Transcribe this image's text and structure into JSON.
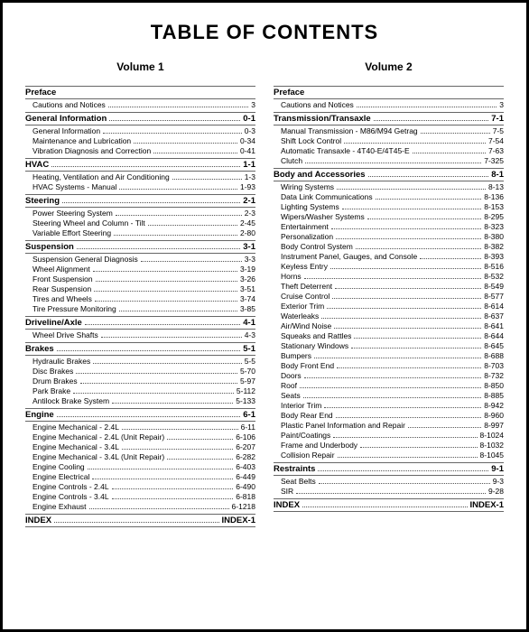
{
  "title": "TABLE OF CONTENTS",
  "volumes": [
    {
      "header": "Volume 1",
      "sections": [
        {
          "name": "Preface",
          "page": "",
          "items": [
            {
              "label": "Cautions and Notices",
              "page": "3"
            }
          ]
        },
        {
          "name": "General Information",
          "page": "0-1",
          "items": [
            {
              "label": "General Information",
              "page": "0-3"
            },
            {
              "label": "Maintenance and Lubrication",
              "page": "0-34"
            },
            {
              "label": "Vibration Diagnosis and Correction",
              "page": "0-41"
            }
          ]
        },
        {
          "name": "HVAC",
          "page": "1-1",
          "items": [
            {
              "label": "Heating, Ventilation and Air Conditioning",
              "page": "1-3"
            },
            {
              "label": "HVAC Systems - Manual",
              "page": "1-93"
            }
          ]
        },
        {
          "name": "Steering",
          "page": "2-1",
          "items": [
            {
              "label": "Power Steering System",
              "page": "2-3"
            },
            {
              "label": "Steering Wheel and Column - Tilt",
              "page": "2-45"
            },
            {
              "label": "Variable Effort Steering",
              "page": "2-80"
            }
          ]
        },
        {
          "name": "Suspension",
          "page": "3-1",
          "items": [
            {
              "label": "Suspension General Diagnosis",
              "page": "3-3"
            },
            {
              "label": "Wheel Alignment",
              "page": "3-19"
            },
            {
              "label": "Front Suspension",
              "page": "3-26"
            },
            {
              "label": "Rear Suspension",
              "page": "3-51"
            },
            {
              "label": "Tires and Wheels",
              "page": "3-74"
            },
            {
              "label": "Tire Pressure Monitoring",
              "page": "3-85"
            }
          ]
        },
        {
          "name": "Driveline/Axle",
          "page": "4-1",
          "items": [
            {
              "label": "Wheel Drive Shafts",
              "page": "4-3"
            }
          ]
        },
        {
          "name": "Brakes",
          "page": "5-1",
          "items": [
            {
              "label": "Hydraulic Brakes",
              "page": "5-5"
            },
            {
              "label": "Disc Brakes",
              "page": "5-70"
            },
            {
              "label": "Drum Brakes",
              "page": "5-97"
            },
            {
              "label": "Park Brake",
              "page": "5-112"
            },
            {
              "label": "Antilock Brake System",
              "page": "5-133"
            }
          ]
        },
        {
          "name": "Engine",
          "page": "6-1",
          "items": [
            {
              "label": "Engine Mechanical - 2.4L",
              "page": "6-11"
            },
            {
              "label": "Engine Mechanical - 2.4L (Unit Repair)",
              "page": "6-106"
            },
            {
              "label": "Engine Mechanical - 3.4L",
              "page": "6-207"
            },
            {
              "label": "Engine Mechanical - 3.4L (Unit Repair)",
              "page": "6-282"
            },
            {
              "label": "Engine Cooling",
              "page": "6-403"
            },
            {
              "label": "Engine Electrical",
              "page": "6-449"
            },
            {
              "label": "Engine Controls - 2.4L",
              "page": "6-490"
            },
            {
              "label": "Engine Controls - 3.4L",
              "page": "6-818"
            },
            {
              "label": "Engine Exhaust",
              "page": "6-1218"
            }
          ]
        }
      ],
      "index": {
        "label": "INDEX",
        "page": "INDEX-1"
      }
    },
    {
      "header": "Volume 2",
      "sections": [
        {
          "name": "Preface",
          "page": "",
          "items": [
            {
              "label": "Cautions and Notices",
              "page": "3"
            }
          ]
        },
        {
          "name": "Transmission/Transaxle",
          "page": "7-1",
          "items": [
            {
              "label": "Manual Transmission - M86/M94 Getrag",
              "page": "7-5"
            },
            {
              "label": "Shift Lock Control",
              "page": "7-54"
            },
            {
              "label": "Automatic Transaxle - 4T40-E/4T45-E",
              "page": "7-63"
            },
            {
              "label": "Clutch",
              "page": "7-325"
            }
          ]
        },
        {
          "name": "Body and Accessories",
          "page": "8-1",
          "items": [
            {
              "label": "Wiring Systems",
              "page": "8-13"
            },
            {
              "label": "Data Link Communications",
              "page": "8-136"
            },
            {
              "label": "Lighting Systems",
              "page": "8-153"
            },
            {
              "label": "Wipers/Washer Systems",
              "page": "8-295"
            },
            {
              "label": "Entertainment",
              "page": "8-323"
            },
            {
              "label": "Personalization",
              "page": "8-380"
            },
            {
              "label": "Body Control System",
              "page": "8-382"
            },
            {
              "label": "Instrument Panel, Gauges, and Console",
              "page": "8-393"
            },
            {
              "label": "Keyless Entry",
              "page": "8-516"
            },
            {
              "label": "Horns",
              "page": "8-532"
            },
            {
              "label": "Theft Deterrent",
              "page": "8-549"
            },
            {
              "label": "Cruise Control",
              "page": "8-577"
            },
            {
              "label": "Exterior Trim",
              "page": "8-614"
            },
            {
              "label": "Waterleaks",
              "page": "8-637"
            },
            {
              "label": "Air/Wind Noise",
              "page": "8-641"
            },
            {
              "label": "Squeaks and Rattles",
              "page": "8-644"
            },
            {
              "label": "Stationary Windows",
              "page": "8-645"
            },
            {
              "label": "Bumpers",
              "page": "8-688"
            },
            {
              "label": "Body Front End",
              "page": "8-703"
            },
            {
              "label": "Doors",
              "page": "8-732"
            },
            {
              "label": "Roof",
              "page": "8-850"
            },
            {
              "label": "Seats",
              "page": "8-885"
            },
            {
              "label": "Interior Trim",
              "page": "8-942"
            },
            {
              "label": "Body Rear End",
              "page": "8-960"
            },
            {
              "label": "Plastic Panel Information and Repair",
              "page": "8-997"
            },
            {
              "label": "Paint/Coatings",
              "page": "8-1024"
            },
            {
              "label": "Frame and Underbody",
              "page": "8-1032"
            },
            {
              "label": "Collision Repair",
              "page": "8-1045"
            }
          ]
        },
        {
          "name": "Restraints",
          "page": "9-1",
          "items": [
            {
              "label": "Seat Belts",
              "page": "9-3"
            },
            {
              "label": "SIR",
              "page": "9-28"
            }
          ]
        }
      ],
      "index": {
        "label": "INDEX",
        "page": "INDEX-1"
      }
    }
  ]
}
